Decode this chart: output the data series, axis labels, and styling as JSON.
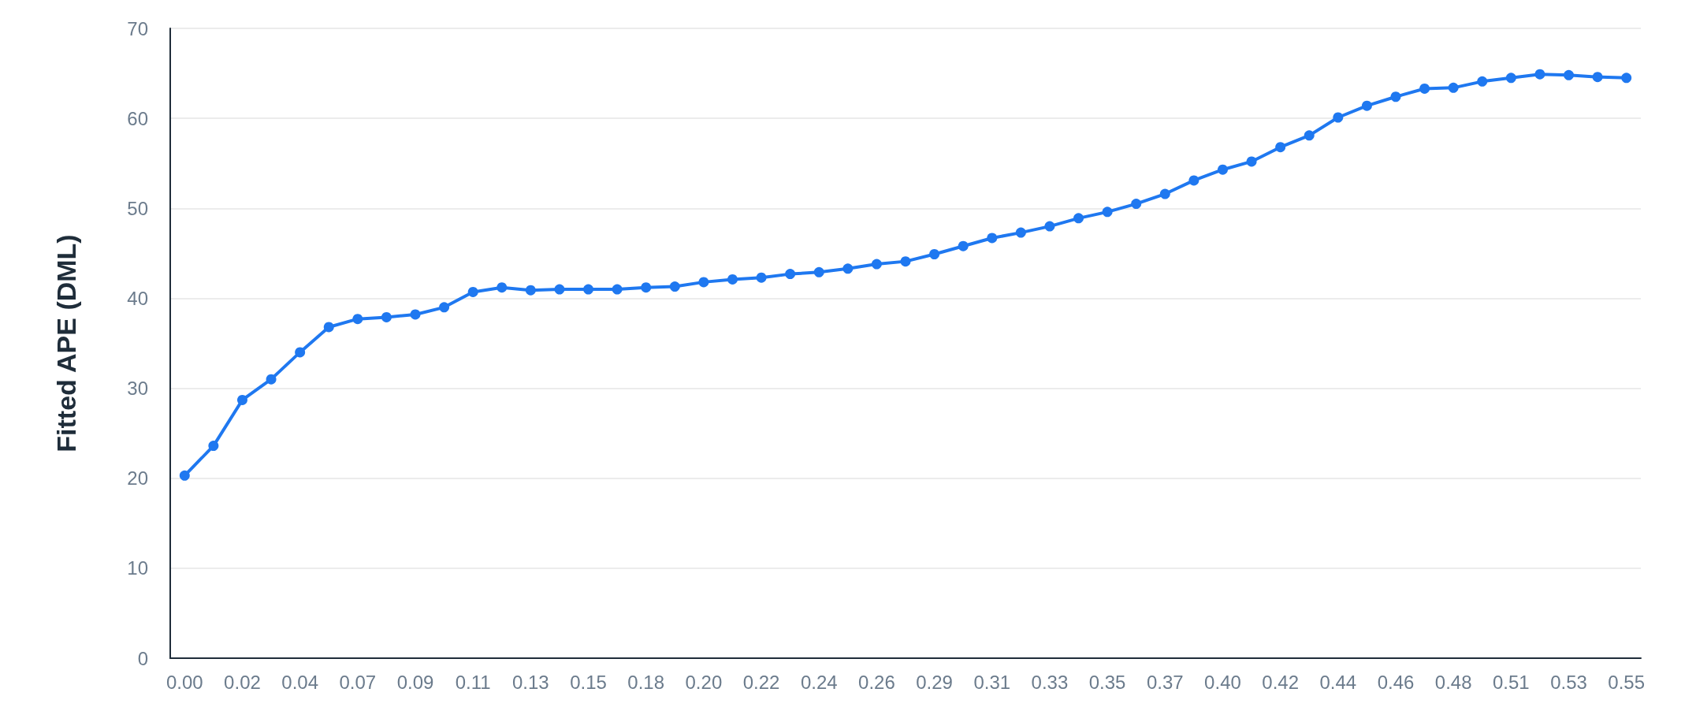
{
  "chart_data": {
    "type": "line",
    "ylabel": "Fitted APE (DML)",
    "categories": [
      "0.00",
      null,
      "0.02",
      null,
      "0.04",
      null,
      "0.07",
      null,
      "0.09",
      null,
      "0.11",
      null,
      "0.13",
      null,
      "0.15",
      null,
      "0.18",
      null,
      "0.20",
      null,
      "0.22",
      null,
      "0.24",
      null,
      "0.26",
      null,
      "0.29",
      null,
      "0.31",
      null,
      "0.33",
      null,
      "0.35",
      null,
      "0.37",
      null,
      "0.40",
      null,
      "0.42",
      null,
      "0.44",
      null,
      "0.46",
      null,
      "0.48",
      null,
      "0.51",
      null,
      "0.53",
      null,
      "0.55"
    ],
    "series": [
      {
        "color": "#1f78f0",
        "values": [
          20.3,
          23.6,
          28.7,
          31.0,
          34.0,
          36.8,
          37.7,
          37.9,
          38.2,
          39.0,
          40.7,
          41.2,
          40.9,
          41.0,
          41.0,
          41.0,
          41.2,
          41.3,
          41.8,
          42.1,
          42.3,
          42.7,
          42.9,
          43.3,
          43.8,
          44.1,
          44.9,
          45.8,
          46.7,
          47.3,
          48.0,
          48.9,
          49.6,
          50.5,
          51.6,
          53.1,
          54.3,
          55.2,
          56.8,
          58.1,
          60.1,
          61.4,
          62.4,
          63.3,
          63.4,
          64.1,
          64.5,
          64.9,
          64.8,
          64.6,
          64.5
        ]
      }
    ],
    "ylim": [
      0,
      70
    ],
    "yticks": [
      0,
      10,
      20,
      30,
      40,
      50,
      60,
      70
    ],
    "grid": "y",
    "marker": "circle",
    "line_style": "solid"
  }
}
